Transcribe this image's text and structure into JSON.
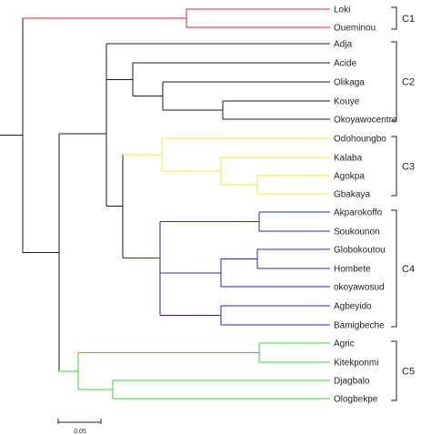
{
  "dendrogram": {
    "colors": {
      "C1": "#e8202a",
      "C2": "#1a1a1a",
      "C3": "#f2ea3a",
      "C4": "#2a2aa8",
      "C5": "#33d633",
      "root": "#1a1a1a"
    },
    "leaves": [
      {
        "label": "Loki",
        "cluster": "C1"
      },
      {
        "label": "Oueminou",
        "cluster": "C1"
      },
      {
        "label": "Adja",
        "cluster": "C2"
      },
      {
        "label": "Acide",
        "cluster": "C2"
      },
      {
        "label": "Olikaga",
        "cluster": "C2"
      },
      {
        "label": "Kouye",
        "cluster": "C2"
      },
      {
        "label": "Okoyawocentre",
        "cluster": "C2"
      },
      {
        "label": "Odohoungbo",
        "cluster": "C3"
      },
      {
        "label": "Kalaba",
        "cluster": "C3"
      },
      {
        "label": "Agokpa",
        "cluster": "C3"
      },
      {
        "label": "Gbakaya",
        "cluster": "C3"
      },
      {
        "label": "Akparokoffo",
        "cluster": "C4"
      },
      {
        "label": "Soukounon",
        "cluster": "C4"
      },
      {
        "label": "Globokoutou",
        "cluster": "C4"
      },
      {
        "label": "Hombete",
        "cluster": "C4"
      },
      {
        "label": "okoyawosud",
        "cluster": "C4"
      },
      {
        "label": "Agbeyido",
        "cluster": "C4"
      },
      {
        "label": "Bamigbeche",
        "cluster": "C4"
      },
      {
        "label": "Agric",
        "cluster": "C5"
      },
      {
        "label": "Kitekponmi",
        "cluster": "C5"
      },
      {
        "label": "Djagbalo",
        "cluster": "C5"
      },
      {
        "label": "Ologbekpe",
        "cluster": "C5"
      }
    ],
    "clusters": [
      {
        "label": "C1",
        "first": 0,
        "last": 1
      },
      {
        "label": "C2",
        "first": 2,
        "last": 6
      },
      {
        "label": "C3",
        "first": 7,
        "last": 10
      },
      {
        "label": "C4",
        "first": 11,
        "last": 17
      },
      {
        "label": "C5",
        "first": 18,
        "last": 21
      }
    ],
    "scale_bar_label": "0.05"
  }
}
